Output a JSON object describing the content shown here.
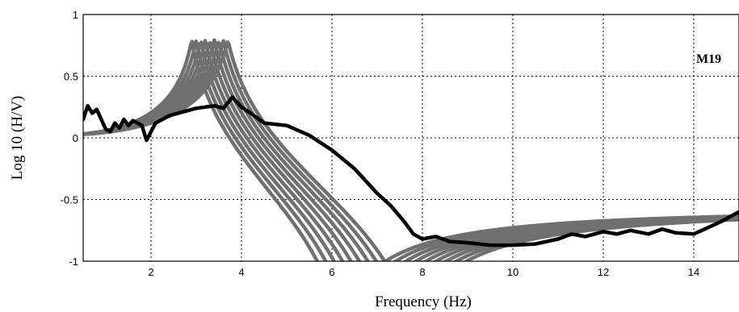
{
  "chart_data": {
    "type": "line",
    "xlabel": "Frequency (Hz)",
    "ylabel": "Log 10 (H/V)",
    "annotation": "M19",
    "xlim": [
      0.5,
      15
    ],
    "ylim": [
      -1,
      1
    ],
    "xticks": [
      2,
      4,
      6,
      8,
      10,
      12,
      14
    ],
    "yticks": [
      1,
      0.5,
      0,
      -0.5,
      -1
    ],
    "xtick_labels": [
      "2",
      "4",
      "6",
      "8",
      "10",
      "12",
      "14"
    ],
    "ytick_labels": [
      "1",
      "0.5",
      "0",
      "-0.5",
      "-1"
    ],
    "grid": true,
    "colors": {
      "observed": "#000000",
      "model": "#707070"
    },
    "series": [
      {
        "role": "observed",
        "x": [
          0.5,
          0.6,
          0.7,
          0.8,
          0.9,
          1.0,
          1.1,
          1.2,
          1.3,
          1.4,
          1.5,
          1.6,
          1.7,
          1.8,
          1.9,
          2.0,
          2.1,
          2.2,
          2.4,
          2.6,
          2.8,
          3.0,
          3.2,
          3.4,
          3.6,
          3.8,
          4.0,
          4.2,
          4.5,
          5.0,
          5.5,
          6.0,
          6.5,
          7.0,
          7.3,
          7.6,
          7.8,
          8.0,
          8.3,
          8.6,
          9.0,
          9.5,
          10.0,
          10.5,
          11.0,
          11.3,
          11.6,
          12.0,
          12.3,
          12.6,
          13.0,
          13.3,
          13.6,
          14.0,
          14.3,
          14.6,
          15.0
        ],
        "y": [
          0.15,
          0.26,
          0.2,
          0.23,
          0.15,
          0.07,
          0.05,
          0.12,
          0.08,
          0.15,
          0.1,
          0.14,
          0.12,
          0.1,
          -0.02,
          0.05,
          0.12,
          0.14,
          0.18,
          0.2,
          0.22,
          0.24,
          0.25,
          0.26,
          0.24,
          0.33,
          0.25,
          0.2,
          0.12,
          0.1,
          0.02,
          -0.1,
          -0.25,
          -0.45,
          -0.55,
          -0.68,
          -0.78,
          -0.82,
          -0.8,
          -0.84,
          -0.85,
          -0.87,
          -0.87,
          -0.86,
          -0.82,
          -0.78,
          -0.8,
          -0.76,
          -0.78,
          -0.75,
          -0.78,
          -0.74,
          -0.77,
          -0.78,
          -0.73,
          -0.68,
          -0.6
        ]
      }
    ],
    "model_curves": [
      {
        "peak_x": 2.9,
        "dip_x": 6.2
      },
      {
        "peak_x": 3.0,
        "dip_x": 6.4
      },
      {
        "peak_x": 3.1,
        "dip_x": 6.6
      },
      {
        "peak_x": 3.2,
        "dip_x": 6.8
      },
      {
        "peak_x": 3.3,
        "dip_x": 7.0
      },
      {
        "peak_x": 3.4,
        "dip_x": 7.2
      },
      {
        "peak_x": 3.5,
        "dip_x": 7.4
      },
      {
        "peak_x": 3.6,
        "dip_x": 7.6
      },
      {
        "peak_x": 3.7,
        "dip_x": 7.8
      }
    ]
  }
}
